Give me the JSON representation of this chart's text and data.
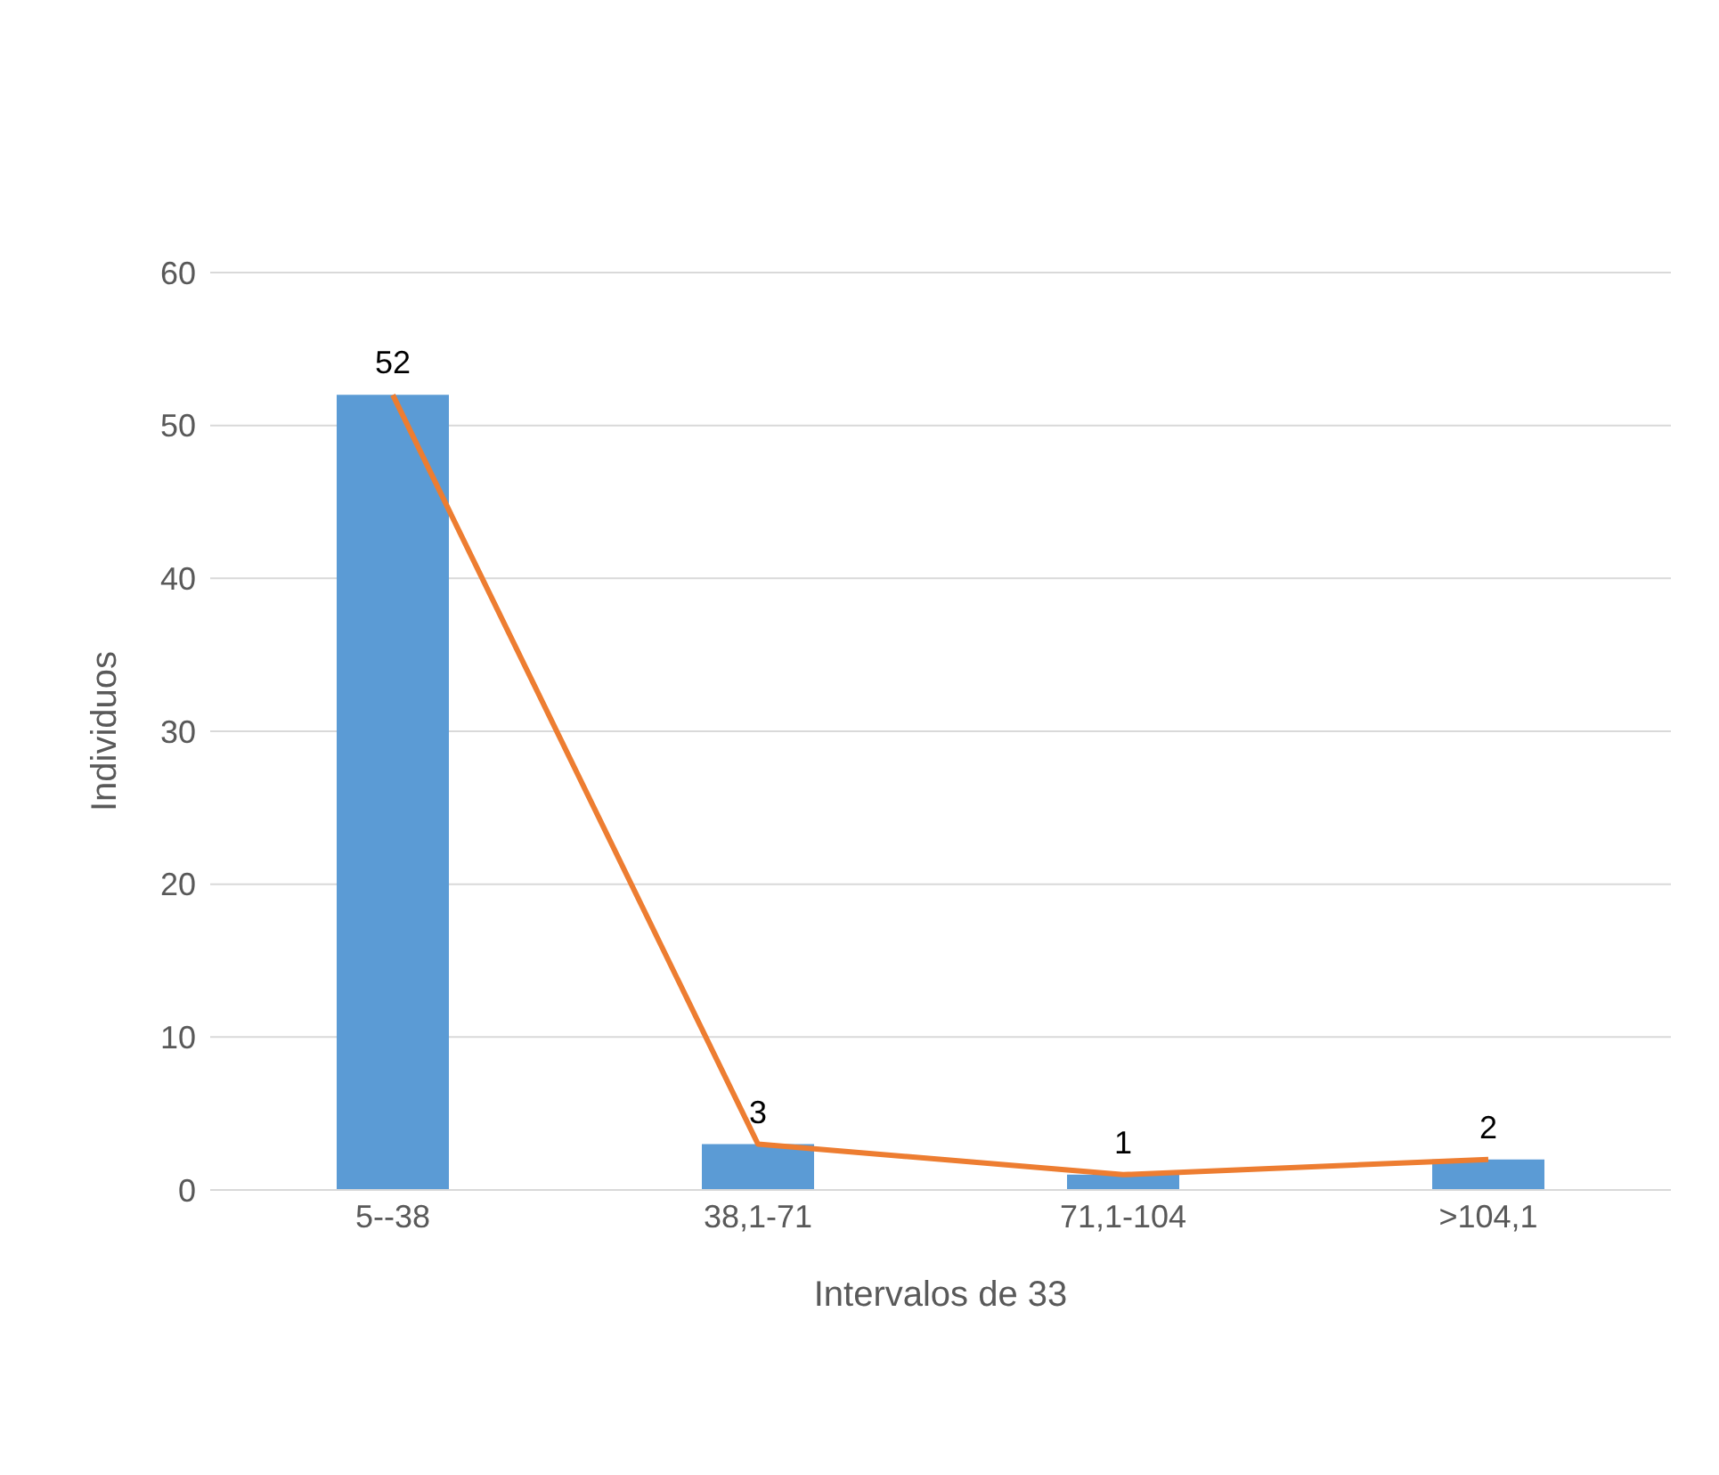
{
  "chart_data": {
    "type": "bar",
    "xlabel": "Intervalos de 33",
    "ylabel": "Individuos",
    "categories": [
      "5--38",
      "38,1-71",
      "71,1-104",
      ">104,1"
    ],
    "series": [
      {
        "color": "#5b9bd5",
        "values": [
          52,
          3,
          1,
          2
        ],
        "value_labels": [
          "52",
          "3",
          "1",
          "2"
        ]
      },
      {
        "type": "line",
        "color": "#ed7d31",
        "values": [
          52,
          3,
          1,
          2
        ]
      }
    ],
    "ylim": [
      0,
      60
    ],
    "yticks": [
      0,
      10,
      20,
      30,
      40,
      50,
      60
    ],
    "grid": "y",
    "legend": false,
    "marker": "none"
  }
}
